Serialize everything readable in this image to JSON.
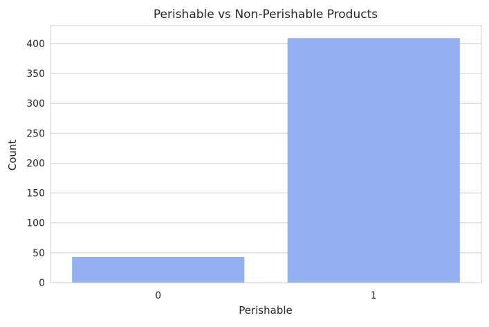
{
  "chart_data": {
    "type": "bar",
    "title": "Perishable vs Non-Perishable Products",
    "xlabel": "Perishable",
    "ylabel": "Count",
    "categories": [
      "0",
      "1"
    ],
    "values": [
      43,
      409
    ],
    "ylim": [
      0,
      430
    ],
    "yticks": [
      0,
      50,
      100,
      150,
      200,
      250,
      300,
      350,
      400
    ],
    "bar_color": "#94B0F1",
    "grid": true,
    "grid_axis": "y",
    "legend": false
  }
}
